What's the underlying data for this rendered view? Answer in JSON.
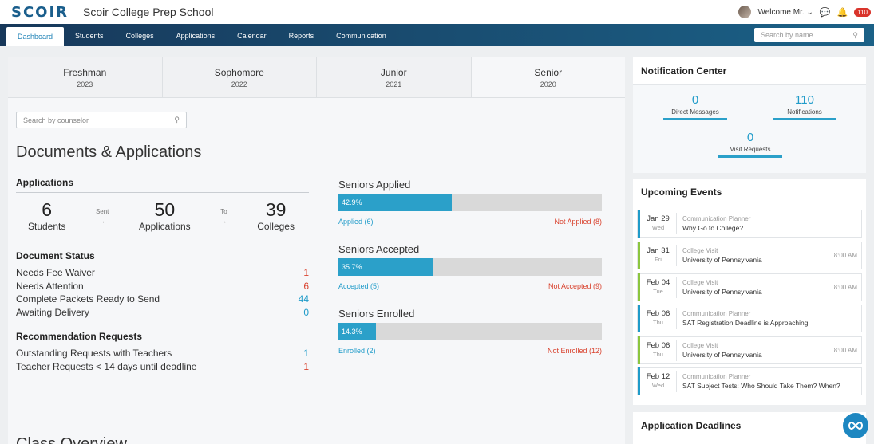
{
  "header": {
    "logo": "SCOIR",
    "school": "Scoir College Prep School",
    "welcome": "Welcome Mr.",
    "notif_count": "110"
  },
  "nav": {
    "tabs": [
      "Dashboard",
      "Students",
      "Colleges",
      "Applications",
      "Calendar",
      "Reports",
      "Communication"
    ],
    "active": "Dashboard",
    "search_placeholder": "Search by name"
  },
  "years": [
    {
      "name": "Freshman",
      "year": "2023"
    },
    {
      "name": "Sophomore",
      "year": "2022"
    },
    {
      "name": "Junior",
      "year": "2021"
    },
    {
      "name": "Senior",
      "year": "2020"
    }
  ],
  "counselor_search_placeholder": "Search by counselor",
  "section_title": "Documents & Applications",
  "applications": {
    "heading": "Applications",
    "students_num": "6",
    "students_lbl": "Students",
    "sent": "Sent",
    "apps_num": "50",
    "apps_lbl": "Applications",
    "to": "To",
    "colleges_num": "39",
    "colleges_lbl": "Colleges"
  },
  "document_status": {
    "heading": "Document Status",
    "rows": [
      {
        "label": "Needs Fee Waiver",
        "value": "1"
      },
      {
        "label": "Needs Attention",
        "value": "6"
      },
      {
        "label": "Complete Packets Ready to Send",
        "value": "44"
      },
      {
        "label": "Awaiting Delivery",
        "value": "0"
      }
    ]
  },
  "recommendations": {
    "heading": "Recommendation Requests",
    "rows": [
      {
        "label": "Outstanding Requests with Teachers",
        "value": "1"
      },
      {
        "label": "Teacher Requests < 14 days until deadline",
        "value": "1"
      }
    ]
  },
  "bars": [
    {
      "title": "Seniors Applied",
      "pct": "42.9%",
      "fraction": 0.429,
      "left": "Applied (6)",
      "right": "Not Applied (8)"
    },
    {
      "title": "Seniors Accepted",
      "pct": "35.7%",
      "fraction": 0.357,
      "left": "Accepted (5)",
      "right": "Not Accepted (9)"
    },
    {
      "title": "Seniors Enrolled",
      "pct": "14.3%",
      "fraction": 0.143,
      "left": "Enrolled (2)",
      "right": "Not Enrolled (12)"
    }
  ],
  "class_overview": "Class Overview",
  "notification_center": {
    "title": "Notification Center",
    "direct_num": "0",
    "direct_lbl": "Direct Messages",
    "notif_num": "110",
    "notif_lbl": "Notifications",
    "visit_num": "0",
    "visit_lbl": "Visit Requests"
  },
  "upcoming_events": {
    "title": "Upcoming Events",
    "events": [
      {
        "date": "Jan 29",
        "dow": "Wed",
        "type": "Communication Planner",
        "title": "Why Go to College?",
        "time": "",
        "color": "#1f9bc9"
      },
      {
        "date": "Jan 31",
        "dow": "Fri",
        "type": "College Visit",
        "title": "University of Pennsylvania",
        "time": "8:00 AM",
        "color": "#8cc63f"
      },
      {
        "date": "Feb 04",
        "dow": "Tue",
        "type": "College Visit",
        "title": "University of Pennsylvania",
        "time": "8:00 AM",
        "color": "#8cc63f"
      },
      {
        "date": "Feb 06",
        "dow": "Thu",
        "type": "Communication Planner",
        "title": "SAT Registration Deadline is Approaching",
        "time": "",
        "color": "#1f9bc9"
      },
      {
        "date": "Feb 06",
        "dow": "Thu",
        "type": "College Visit",
        "title": "University of Pennsylvania",
        "time": "8:00 AM",
        "color": "#8cc63f"
      },
      {
        "date": "Feb 12",
        "dow": "Wed",
        "type": "Communication Planner",
        "title": "SAT Subject Tests: Who Should Take Them? When?",
        "time": "",
        "color": "#1f9bc9"
      }
    ]
  },
  "application_deadlines": "Application Deadlines"
}
